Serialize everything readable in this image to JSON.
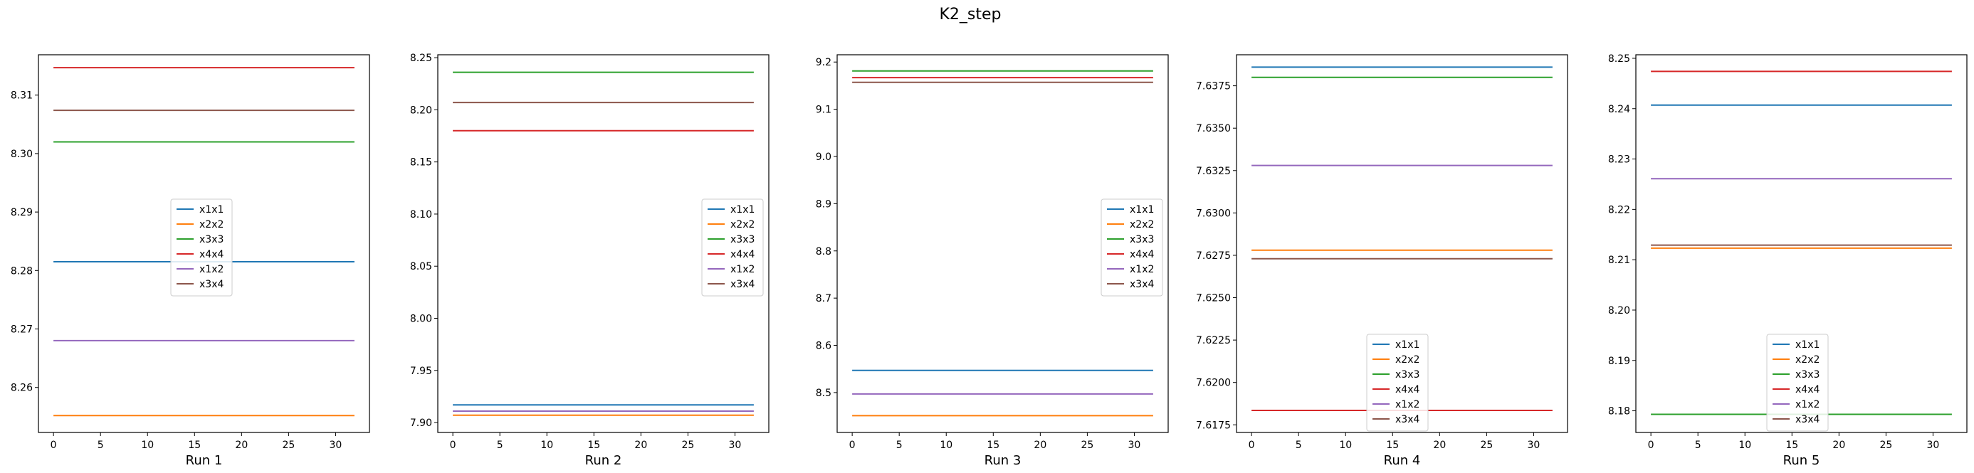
{
  "figure": {
    "title": "K2_step"
  },
  "colors": {
    "x1x1": "#1f77b4",
    "x2x2": "#ff7f0e",
    "x3x3": "#2ca02c",
    "x4x4": "#d62728",
    "x1x2": "#9467bd",
    "x3x4": "#8c564b"
  },
  "chart_data": [
    {
      "type": "line",
      "xlabel": "Run 1",
      "xlim": [
        -1.6,
        33.6
      ],
      "xticks": [
        0,
        5,
        10,
        15,
        20,
        25,
        30
      ],
      "ylim": [
        8.2523,
        8.3169
      ],
      "yticks": [
        8.26,
        8.27,
        8.28,
        8.29,
        8.3,
        8.31
      ],
      "ytick_labels": [
        "8.26",
        "8.27",
        "8.28",
        "8.29",
        "8.30",
        "8.31"
      ],
      "legend_loc": "center",
      "x": [
        0,
        32
      ],
      "series": [
        {
          "name": "x1x1",
          "values": [
            8.2815,
            8.2815
          ]
        },
        {
          "name": "x2x2",
          "values": [
            8.2552,
            8.2552
          ]
        },
        {
          "name": "x3x3",
          "values": [
            8.302,
            8.302
          ]
        },
        {
          "name": "x4x4",
          "values": [
            8.3147,
            8.3147
          ]
        },
        {
          "name": "x1x2",
          "values": [
            8.268,
            8.268
          ]
        },
        {
          "name": "x3x4",
          "values": [
            8.3074,
            8.3074
          ]
        }
      ]
    },
    {
      "type": "line",
      "xlabel": "Run 2",
      "xlim": [
        -1.6,
        33.6
      ],
      "xticks": [
        0,
        5,
        10,
        15,
        20,
        25,
        30
      ],
      "ylim": [
        7.8905,
        8.2528
      ],
      "yticks": [
        7.9,
        7.95,
        8.0,
        8.05,
        8.1,
        8.15,
        8.2,
        8.25
      ],
      "ytick_labels": [
        "7.90",
        "7.95",
        "8.00",
        "8.05",
        "8.10",
        "8.15",
        "8.20",
        "8.25"
      ],
      "legend_loc": "center right",
      "x": [
        0,
        32
      ],
      "series": [
        {
          "name": "x1x1",
          "values": [
            7.917,
            7.917
          ]
        },
        {
          "name": "x2x2",
          "values": [
            7.907,
            7.907
          ]
        },
        {
          "name": "x3x3",
          "values": [
            8.236,
            8.236
          ]
        },
        {
          "name": "x4x4",
          "values": [
            8.18,
            8.18
          ]
        },
        {
          "name": "x1x2",
          "values": [
            7.911,
            7.911
          ]
        },
        {
          "name": "x3x4",
          "values": [
            8.207,
            8.207
          ]
        }
      ]
    },
    {
      "type": "line",
      "xlabel": "Run 3",
      "xlim": [
        -1.6,
        33.6
      ],
      "xticks": [
        0,
        5,
        10,
        15,
        20,
        25,
        30
      ],
      "ylim": [
        8.4155,
        9.2154
      ],
      "yticks": [
        8.5,
        8.6,
        8.7,
        8.8,
        8.9,
        9.0,
        9.1,
        9.2
      ],
      "ytick_labels": [
        "8.5",
        "8.6",
        "8.7",
        "8.8",
        "8.9",
        "9.0",
        "9.1",
        "9.2"
      ],
      "legend_loc": "center right",
      "x": [
        0,
        32
      ],
      "series": [
        {
          "name": "x1x1",
          "values": [
            8.547,
            8.547
          ]
        },
        {
          "name": "x2x2",
          "values": [
            8.451,
            8.451
          ]
        },
        {
          "name": "x3x3",
          "values": [
            9.181,
            9.181
          ]
        },
        {
          "name": "x4x4",
          "values": [
            9.167,
            9.167
          ]
        },
        {
          "name": "x1x2",
          "values": [
            8.497,
            8.497
          ]
        },
        {
          "name": "x3x4",
          "values": [
            9.157,
            9.157
          ]
        }
      ]
    },
    {
      "type": "line",
      "xlabel": "Run 4",
      "xlim": [
        -1.6,
        33.6
      ],
      "xticks": [
        0,
        5,
        10,
        15,
        20,
        25,
        30
      ],
      "ylim": [
        7.61705,
        7.63933
      ],
      "yticks": [
        7.6175,
        7.62,
        7.6225,
        7.625,
        7.6275,
        7.63,
        7.6325,
        7.635,
        7.6375
      ],
      "ytick_labels": [
        "7.6175",
        "7.6200",
        "7.6225",
        "7.6250",
        "7.6275",
        "7.6300",
        "7.6325",
        "7.6350",
        "7.6375"
      ],
      "legend_loc": "lower center",
      "x": [
        0,
        32
      ],
      "series": [
        {
          "name": "x1x1",
          "values": [
            7.6386,
            7.6386
          ]
        },
        {
          "name": "x2x2",
          "values": [
            7.6278,
            7.6278
          ]
        },
        {
          "name": "x3x3",
          "values": [
            7.638,
            7.638
          ]
        },
        {
          "name": "x4x4",
          "values": [
            7.61835,
            7.61835
          ]
        },
        {
          "name": "x1x2",
          "values": [
            7.6328,
            7.6328
          ]
        },
        {
          "name": "x3x4",
          "values": [
            7.6273,
            7.6273
          ]
        }
      ]
    },
    {
      "type": "line",
      "xlabel": "Run 5",
      "xlim": [
        -1.6,
        33.6
      ],
      "xticks": [
        0,
        5,
        10,
        15,
        20,
        25,
        30
      ],
      "ylim": [
        8.1757,
        8.2507
      ],
      "yticks": [
        8.18,
        8.19,
        8.2,
        8.21,
        8.22,
        8.23,
        8.24,
        8.25
      ],
      "ytick_labels": [
        "8.18",
        "8.19",
        "8.20",
        "8.21",
        "8.22",
        "8.23",
        "8.24",
        "8.25"
      ],
      "legend_loc": "lower center",
      "x": [
        0,
        32
      ],
      "series": [
        {
          "name": "x1x1",
          "values": [
            8.2407,
            8.2407
          ]
        },
        {
          "name": "x2x2",
          "values": [
            8.2123,
            8.2123
          ]
        },
        {
          "name": "x3x3",
          "values": [
            8.1793,
            8.1793
          ]
        },
        {
          "name": "x4x4",
          "values": [
            8.2474,
            8.2474
          ]
        },
        {
          "name": "x1x2",
          "values": [
            8.2261,
            8.2261
          ]
        },
        {
          "name": "x3x4",
          "values": [
            8.2129,
            8.2129
          ]
        }
      ]
    }
  ]
}
